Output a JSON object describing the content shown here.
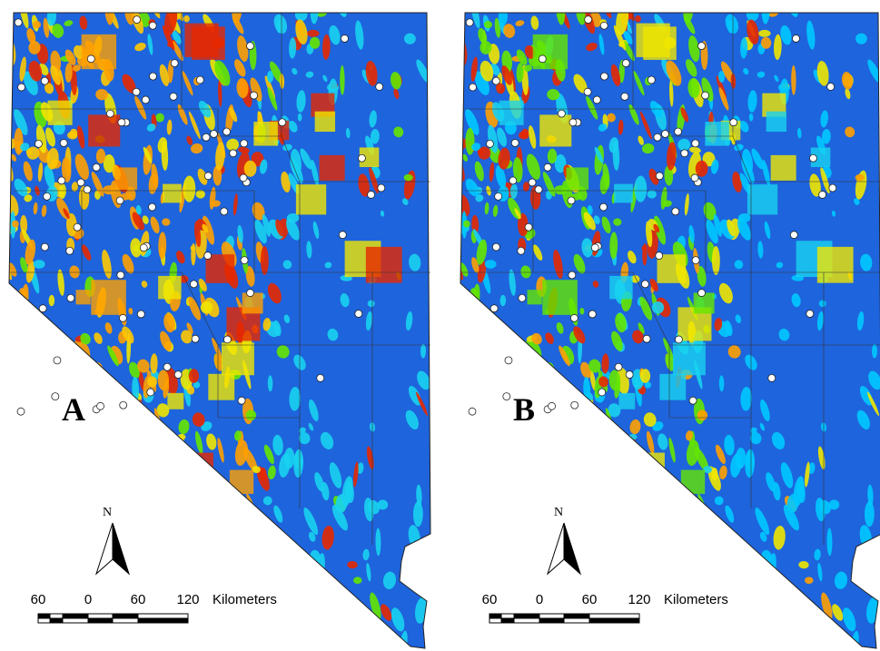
{
  "panels": [
    {
      "label": "A",
      "north": "N",
      "scale": {
        "ticks": [
          "60",
          "0",
          "60",
          "120"
        ],
        "unit": "Kilometers"
      }
    },
    {
      "label": "B",
      "north": "N",
      "scale": {
        "ticks": [
          "60",
          "0",
          "60",
          "120"
        ],
        "unit": "Kilometers"
      }
    }
  ]
}
